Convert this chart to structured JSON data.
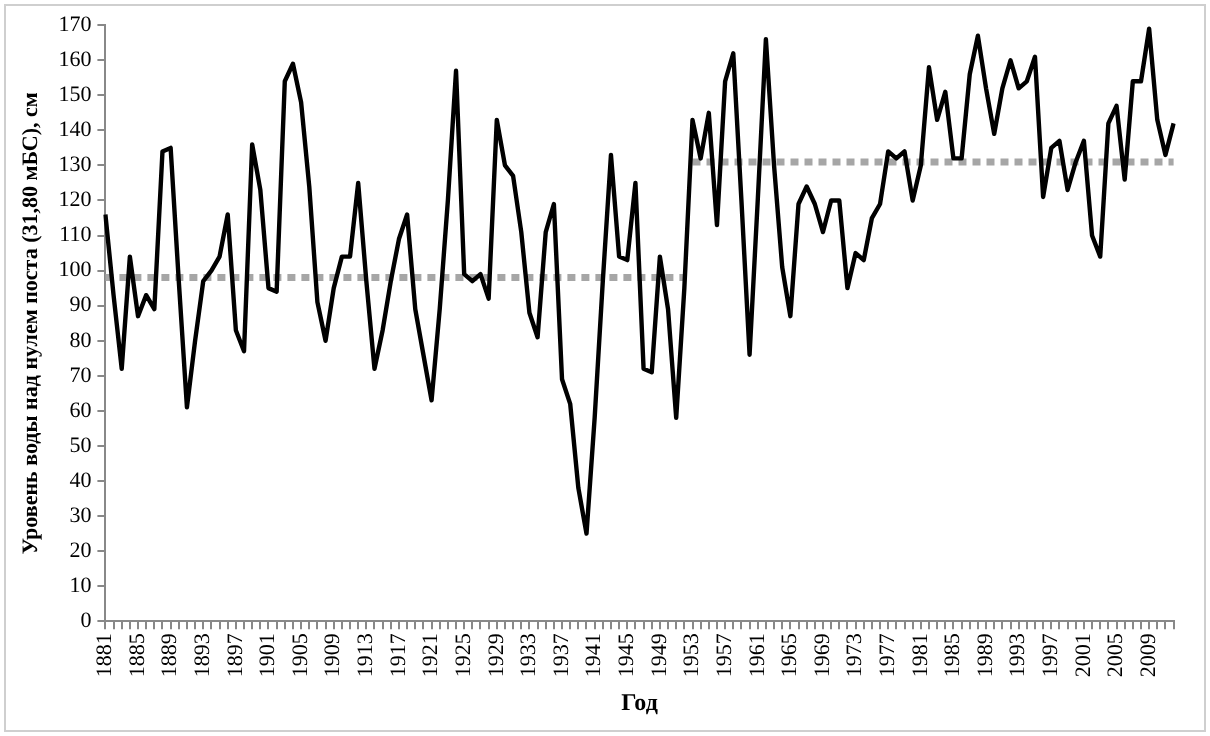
{
  "chart_data": {
    "type": "line",
    "xlabel": "Год",
    "ylabel": "Уровень воды над нулем поста (31,80 мБС), см",
    "ylim": [
      0,
      170
    ],
    "yticks": [
      0,
      10,
      20,
      30,
      40,
      50,
      60,
      70,
      80,
      90,
      100,
      110,
      120,
      130,
      140,
      150,
      160,
      170
    ],
    "grid": false,
    "legend": false,
    "marker": "none",
    "categories": [
      "1881",
      null,
      null,
      null,
      "1885",
      null,
      null,
      null,
      "1889",
      null,
      null,
      null,
      "1893",
      null,
      null,
      null,
      "1897",
      null,
      null,
      null,
      "1901",
      null,
      null,
      null,
      "1905",
      null,
      null,
      null,
      "1909",
      null,
      null,
      null,
      "1913",
      null,
      null,
      null,
      "1917",
      null,
      null,
      null,
      "1921",
      null,
      null,
      null,
      "1925",
      null,
      null,
      null,
      "1929",
      null,
      null,
      null,
      "1933",
      null,
      null,
      null,
      "1937",
      null,
      null,
      null,
      "1941",
      null,
      null,
      null,
      "1945",
      null,
      null,
      null,
      "1949",
      null,
      null,
      null,
      "1953",
      null,
      null,
      null,
      "1957",
      null,
      null,
      null,
      "1961",
      null,
      null,
      null,
      "1965",
      null,
      null,
      null,
      "1969",
      null,
      null,
      null,
      "1973",
      null,
      null,
      null,
      "1977",
      null,
      null,
      null,
      "1981",
      null,
      null,
      null,
      "1985",
      null,
      null,
      null,
      "1989",
      null,
      null,
      null,
      "1993",
      null,
      null,
      null,
      "1997",
      null,
      null,
      null,
      "2001",
      null,
      null,
      null,
      "2005",
      null,
      null,
      null,
      "2009",
      null,
      null,
      null
    ],
    "series": [
      {
        "color": "#000000",
        "line_style": "solid",
        "values": [
          116,
          93,
          72,
          104,
          87,
          93,
          89,
          134,
          135,
          97,
          61,
          80,
          97,
          100,
          104,
          116,
          83,
          77,
          136,
          123,
          95,
          94,
          154,
          159,
          148,
          124,
          91,
          80,
          95,
          104,
          104,
          125,
          97,
          72,
          83,
          97,
          109,
          116,
          89,
          76,
          63,
          89,
          120,
          157,
          99,
          97,
          99,
          92,
          143,
          130,
          127,
          111,
          88,
          81,
          111,
          119,
          69,
          62,
          38,
          25,
          58,
          97,
          133,
          104,
          103,
          125,
          72,
          71,
          104,
          89,
          58,
          95,
          143,
          132,
          145,
          113,
          154,
          162,
          120,
          76,
          120,
          166,
          130,
          101,
          87,
          119,
          124,
          119,
          111,
          120,
          120,
          95,
          105,
          103,
          115,
          119,
          134,
          132,
          134,
          120,
          130,
          158,
          143,
          151,
          132,
          132,
          156,
          167,
          152,
          139,
          152,
          160,
          152,
          154,
          161,
          121,
          135,
          137,
          123,
          131,
          137,
          110,
          104,
          142,
          147,
          126,
          154,
          154,
          169,
          143,
          133,
          142
        ]
      },
      {
        "color": "#a6a6a6",
        "line_style": "dotted",
        "values": [
          98,
          98,
          98,
          98,
          98,
          98,
          98,
          98,
          98,
          98,
          98,
          98,
          98,
          98,
          98,
          98,
          98,
          98,
          98,
          98,
          98,
          98,
          98,
          98,
          98,
          98,
          98,
          98,
          98,
          98,
          98,
          98,
          98,
          98,
          98,
          98,
          98,
          98,
          98,
          98,
          98,
          98,
          98,
          98,
          98,
          98,
          98,
          98,
          98,
          98,
          98,
          98,
          98,
          98,
          98,
          98,
          98,
          98,
          98,
          98,
          98,
          98,
          98,
          98,
          98,
          98,
          98,
          98,
          98,
          98,
          98,
          98,
          null,
          null,
          null,
          null,
          null,
          null,
          null,
          null,
          null,
          null,
          null,
          null,
          null,
          null,
          null,
          null,
          null,
          null,
          null,
          null,
          null,
          null,
          null,
          null,
          null,
          null,
          null,
          null,
          null,
          null,
          null,
          null,
          null,
          null,
          null,
          null,
          null,
          null,
          null,
          null,
          null,
          null,
          null,
          null,
          null,
          null,
          null,
          null,
          null,
          null,
          null,
          null,
          null,
          null,
          null,
          null,
          null,
          null,
          null,
          null
        ]
      },
      {
        "color": "#a6a6a6",
        "line_style": "dotted",
        "values": [
          null,
          null,
          null,
          null,
          null,
          null,
          null,
          null,
          null,
          null,
          null,
          null,
          null,
          null,
          null,
          null,
          null,
          null,
          null,
          null,
          null,
          null,
          null,
          null,
          null,
          null,
          null,
          null,
          null,
          null,
          null,
          null,
          null,
          null,
          null,
          null,
          null,
          null,
          null,
          null,
          null,
          null,
          null,
          null,
          null,
          null,
          null,
          null,
          null,
          null,
          null,
          null,
          null,
          null,
          null,
          null,
          null,
          null,
          null,
          null,
          null,
          null,
          null,
          null,
          null,
          null,
          null,
          null,
          null,
          null,
          null,
          null,
          131,
          131,
          131,
          131,
          131,
          131,
          131,
          131,
          131,
          131,
          131,
          131,
          131,
          131,
          131,
          131,
          131,
          131,
          131,
          131,
          131,
          131,
          131,
          131,
          131,
          131,
          131,
          131,
          131,
          131,
          131,
          131,
          131,
          131,
          131,
          131,
          131,
          131,
          131,
          131,
          131,
          131,
          131,
          131,
          131,
          131,
          131,
          131,
          131,
          131,
          131,
          131,
          131,
          131,
          131,
          131,
          131,
          131,
          131,
          131
        ]
      }
    ]
  }
}
